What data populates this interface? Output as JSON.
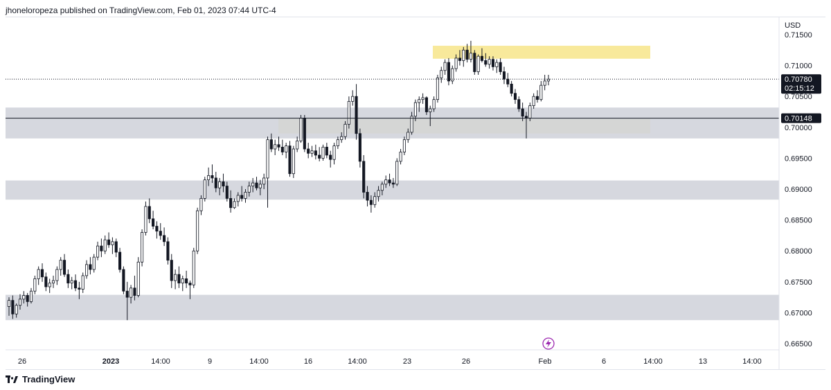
{
  "header": {
    "publisher": "jhoneloropeza published on TradingView.com, Feb 01, 2023 07:44 UTC-4"
  },
  "footer": {
    "brand": "TradingView"
  },
  "chart_data": {
    "type": "candlestick",
    "currency": "USD",
    "ylim": [
      0.664,
      0.7178
    ],
    "y_ticks": [
      "0.71500",
      "0.71000",
      "0.70500",
      "0.70000",
      "0.69500",
      "0.69000",
      "0.68500",
      "0.68000",
      "0.67500",
      "0.67000",
      "0.66500"
    ],
    "x_ticks": [
      "26",
      "2023",
      "14:00",
      "9",
      "14:00",
      "16",
      "14:00",
      "23",
      "26",
      "Feb",
      "6",
      "14:00",
      "13",
      "14:00"
    ],
    "last_price": {
      "value": "0.70780",
      "countdown": "02:15:12"
    },
    "crosshair_price": {
      "value": "0.70148"
    },
    "zones": [
      {
        "type": "supply",
        "color": "#f7e58a",
        "y_low": 0.7111,
        "y_high": 0.7132
      },
      {
        "type": "demand",
        "color": "#f2e08a",
        "y_low": 0.699,
        "y_high": 0.7014
      },
      {
        "type": "range",
        "color": "#d1d4dc",
        "y_low": 0.6982,
        "y_high": 0.7032
      },
      {
        "type": "range",
        "color": "#d1d4dc",
        "y_low": 0.6883,
        "y_high": 0.6914
      },
      {
        "type": "range",
        "color": "#d1d4dc",
        "y_low": 0.6688,
        "y_high": 0.6729
      }
    ],
    "candles": [
      [
        0.671,
        0.6725,
        0.6695,
        0.672
      ],
      [
        0.672,
        0.6728,
        0.669,
        0.6698
      ],
      [
        0.6698,
        0.6715,
        0.6692,
        0.6712
      ],
      [
        0.6712,
        0.673,
        0.6705,
        0.6722
      ],
      [
        0.6722,
        0.6735,
        0.6715,
        0.6728
      ],
      [
        0.6728,
        0.6732,
        0.671,
        0.6718
      ],
      [
        0.6718,
        0.674,
        0.6715,
        0.6735
      ],
      [
        0.6735,
        0.676,
        0.673,
        0.6755
      ],
      [
        0.6755,
        0.6775,
        0.6745,
        0.677
      ],
      [
        0.677,
        0.678,
        0.675,
        0.6758
      ],
      [
        0.6758,
        0.6765,
        0.6735,
        0.6742
      ],
      [
        0.6742,
        0.6755,
        0.6732,
        0.6748
      ],
      [
        0.6748,
        0.676,
        0.674,
        0.6752
      ],
      [
        0.6752,
        0.6775,
        0.6745,
        0.677
      ],
      [
        0.677,
        0.679,
        0.676,
        0.6785
      ],
      [
        0.6785,
        0.6795,
        0.6758,
        0.6762
      ],
      [
        0.6762,
        0.677,
        0.674,
        0.6748
      ],
      [
        0.6748,
        0.6758,
        0.6738,
        0.6752
      ],
      [
        0.6752,
        0.6762,
        0.6735,
        0.674
      ],
      [
        0.674,
        0.675,
        0.6722,
        0.6738
      ],
      [
        0.6738,
        0.6765,
        0.6732,
        0.676
      ],
      [
        0.676,
        0.6785,
        0.6755,
        0.6778
      ],
      [
        0.6778,
        0.679,
        0.6762,
        0.677
      ],
      [
        0.677,
        0.6795,
        0.6765,
        0.679
      ],
      [
        0.679,
        0.6815,
        0.6785,
        0.6808
      ],
      [
        0.6808,
        0.682,
        0.679,
        0.68
      ],
      [
        0.68,
        0.6825,
        0.6795,
        0.6818
      ],
      [
        0.6818,
        0.683,
        0.6805,
        0.681
      ],
      [
        0.681,
        0.6822,
        0.6795,
        0.6815
      ],
      [
        0.6815,
        0.682,
        0.679,
        0.6798
      ],
      [
        0.6798,
        0.6805,
        0.6765,
        0.677
      ],
      [
        0.677,
        0.6775,
        0.673,
        0.6735
      ],
      [
        0.6735,
        0.675,
        0.6688,
        0.6725
      ],
      [
        0.6725,
        0.6745,
        0.6715,
        0.674
      ],
      [
        0.674,
        0.676,
        0.672,
        0.6728
      ],
      [
        0.6728,
        0.679,
        0.6725,
        0.6782
      ],
      [
        0.6782,
        0.6835,
        0.6775,
        0.683
      ],
      [
        0.683,
        0.688,
        0.6825,
        0.6872
      ],
      [
        0.6872,
        0.6885,
        0.6845,
        0.6852
      ],
      [
        0.6852,
        0.6865,
        0.6835,
        0.684
      ],
      [
        0.684,
        0.6848,
        0.682,
        0.6832
      ],
      [
        0.6832,
        0.6845,
        0.6818,
        0.6825
      ],
      [
        0.6825,
        0.6838,
        0.6808,
        0.6815
      ],
      [
        0.6815,
        0.6822,
        0.6778,
        0.6785
      ],
      [
        0.6785,
        0.6795,
        0.674,
        0.6752
      ],
      [
        0.6752,
        0.677,
        0.6738,
        0.6762
      ],
      [
        0.6762,
        0.6775,
        0.674,
        0.6748
      ],
      [
        0.6748,
        0.676,
        0.6735,
        0.6755
      ],
      [
        0.6755,
        0.6768,
        0.674,
        0.6748
      ],
      [
        0.6748,
        0.6752,
        0.6722,
        0.6745
      ],
      [
        0.6745,
        0.6805,
        0.674,
        0.68
      ],
      [
        0.68,
        0.687,
        0.6795,
        0.6865
      ],
      [
        0.6865,
        0.689,
        0.6858,
        0.6885
      ],
      [
        0.6885,
        0.692,
        0.688,
        0.6915
      ],
      [
        0.6915,
        0.6935,
        0.6905,
        0.6922
      ],
      [
        0.6922,
        0.694,
        0.691,
        0.6918
      ],
      [
        0.6918,
        0.6928,
        0.6895,
        0.6902
      ],
      [
        0.6902,
        0.6918,
        0.689,
        0.6912
      ],
      [
        0.6912,
        0.6925,
        0.6895,
        0.6905
      ],
      [
        0.6905,
        0.6912,
        0.688,
        0.6885
      ],
      [
        0.6885,
        0.6898,
        0.6862,
        0.687
      ],
      [
        0.687,
        0.6885,
        0.6868,
        0.688
      ],
      [
        0.688,
        0.6895,
        0.6872,
        0.689
      ],
      [
        0.689,
        0.6905,
        0.688,
        0.6885
      ],
      [
        0.6885,
        0.69,
        0.6878,
        0.6895
      ],
      [
        0.6895,
        0.6912,
        0.6888,
        0.6905
      ],
      [
        0.6905,
        0.6918,
        0.6895,
        0.691
      ],
      [
        0.691,
        0.692,
        0.6898,
        0.6902
      ],
      [
        0.6902,
        0.6915,
        0.689,
        0.6908
      ],
      [
        0.6908,
        0.6925,
        0.69,
        0.6918
      ],
      [
        0.6918,
        0.6985,
        0.687,
        0.698
      ],
      [
        0.698,
        0.699,
        0.696,
        0.6965
      ],
      [
        0.6965,
        0.698,
        0.6955,
        0.6972
      ],
      [
        0.6972,
        0.6985,
        0.6962,
        0.6968
      ],
      [
        0.6968,
        0.698,
        0.6955,
        0.696
      ],
      [
        0.696,
        0.6975,
        0.695,
        0.697
      ],
      [
        0.697,
        0.6978,
        0.692,
        0.6925
      ],
      [
        0.6925,
        0.697,
        0.6918,
        0.6965
      ],
      [
        0.6965,
        0.6985,
        0.696,
        0.6978
      ],
      [
        0.6978,
        0.702,
        0.6975,
        0.7015
      ],
      [
        0.7015,
        0.702,
        0.696,
        0.6965
      ],
      [
        0.6965,
        0.6975,
        0.695,
        0.6958
      ],
      [
        0.6958,
        0.697,
        0.6952,
        0.6962
      ],
      [
        0.6962,
        0.6972,
        0.6948,
        0.6955
      ],
      [
        0.6955,
        0.6968,
        0.6945,
        0.695
      ],
      [
        0.695,
        0.6972,
        0.6946,
        0.6968
      ],
      [
        0.6968,
        0.6975,
        0.695,
        0.6955
      ],
      [
        0.6955,
        0.6962,
        0.6935,
        0.6948
      ],
      [
        0.6948,
        0.6975,
        0.694,
        0.697
      ],
      [
        0.697,
        0.6985,
        0.6965,
        0.698
      ],
      [
        0.698,
        0.6992,
        0.6975,
        0.6985
      ],
      [
        0.6985,
        0.701,
        0.698,
        0.7005
      ],
      [
        0.7005,
        0.705,
        0.6998,
        0.7042
      ],
      [
        0.7042,
        0.706,
        0.7035,
        0.705
      ],
      [
        0.705,
        0.707,
        0.698,
        0.699
      ],
      [
        0.699,
        0.6998,
        0.6935,
        0.6945
      ],
      [
        0.6945,
        0.6955,
        0.6885,
        0.6895
      ],
      [
        0.6895,
        0.6905,
        0.6872,
        0.6882
      ],
      [
        0.6882,
        0.689,
        0.6862,
        0.6875
      ],
      [
        0.6875,
        0.6895,
        0.687,
        0.6888
      ],
      [
        0.6888,
        0.6905,
        0.688,
        0.6898
      ],
      [
        0.6898,
        0.6912,
        0.689,
        0.6908
      ],
      [
        0.6908,
        0.6922,
        0.6902,
        0.6915
      ],
      [
        0.6915,
        0.6925,
        0.6905,
        0.691
      ],
      [
        0.691,
        0.6918,
        0.6902,
        0.6908
      ],
      [
        0.6908,
        0.695,
        0.6905,
        0.6945
      ],
      [
        0.6945,
        0.6965,
        0.694,
        0.696
      ],
      [
        0.696,
        0.6985,
        0.6955,
        0.698
      ],
      [
        0.698,
        0.6998,
        0.6975,
        0.6992
      ],
      [
        0.6992,
        0.7025,
        0.6988,
        0.7018
      ],
      [
        0.7018,
        0.7045,
        0.701,
        0.704
      ],
      [
        0.704,
        0.705,
        0.7025,
        0.7045
      ],
      [
        0.7045,
        0.7055,
        0.7038,
        0.7048
      ],
      [
        0.7048,
        0.705,
        0.702,
        0.7025
      ],
      [
        0.7025,
        0.7035,
        0.7002,
        0.703
      ],
      [
        0.703,
        0.705,
        0.7025,
        0.7045
      ],
      [
        0.7045,
        0.7085,
        0.704,
        0.708
      ],
      [
        0.708,
        0.7098,
        0.7072,
        0.7092
      ],
      [
        0.7092,
        0.711,
        0.7085,
        0.7105
      ],
      [
        0.7105,
        0.7112,
        0.7068,
        0.7075
      ],
      [
        0.7075,
        0.71,
        0.707,
        0.7095
      ],
      [
        0.7095,
        0.7118,
        0.709,
        0.7112
      ],
      [
        0.7112,
        0.7125,
        0.71,
        0.7108
      ],
      [
        0.7108,
        0.713,
        0.7098,
        0.7125
      ],
      [
        0.7125,
        0.7135,
        0.7105,
        0.711
      ],
      [
        0.711,
        0.714,
        0.7105,
        0.712
      ],
      [
        0.712,
        0.7125,
        0.7085,
        0.709
      ],
      [
        0.709,
        0.7118,
        0.7085,
        0.7115
      ],
      [
        0.7115,
        0.7128,
        0.7105,
        0.7108
      ],
      [
        0.7108,
        0.712,
        0.7098,
        0.7102
      ],
      [
        0.7102,
        0.7115,
        0.7095,
        0.711
      ],
      [
        0.711,
        0.7115,
        0.7092,
        0.7098
      ],
      [
        0.7098,
        0.711,
        0.7088,
        0.7105
      ],
      [
        0.7105,
        0.7112,
        0.7085,
        0.709
      ],
      [
        0.709,
        0.7098,
        0.707,
        0.7078
      ],
      [
        0.7078,
        0.7088,
        0.7065,
        0.707
      ],
      [
        0.707,
        0.7075,
        0.705,
        0.7055
      ],
      [
        0.7055,
        0.7062,
        0.7038,
        0.7045
      ],
      [
        0.7045,
        0.705,
        0.7025,
        0.703
      ],
      [
        0.703,
        0.704,
        0.701,
        0.7018
      ],
      [
        0.7018,
        0.7025,
        0.6982,
        0.7015
      ],
      [
        0.7015,
        0.704,
        0.701,
        0.7035
      ],
      [
        0.7035,
        0.7055,
        0.703,
        0.705
      ],
      [
        0.705,
        0.706,
        0.704,
        0.7045
      ],
      [
        0.7045,
        0.7075,
        0.7042,
        0.7068
      ],
      [
        0.7068,
        0.7085,
        0.706,
        0.7075
      ],
      [
        0.7075,
        0.7085,
        0.7068,
        0.7078
      ]
    ]
  }
}
